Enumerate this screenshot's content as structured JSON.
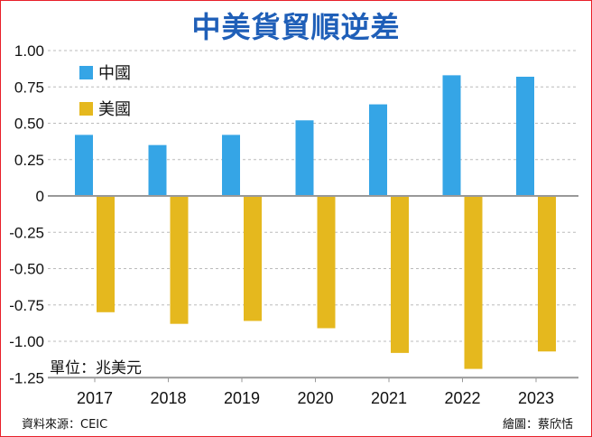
{
  "chart_data": {
    "type": "bar",
    "title": "中美貨貿順逆差",
    "categories": [
      "2017",
      "2018",
      "2019",
      "2020",
      "2021",
      "2022",
      "2023"
    ],
    "series": [
      {
        "name": "中國",
        "color": "#35a5e6",
        "values": [
          0.42,
          0.35,
          0.42,
          0.52,
          0.63,
          0.83,
          0.82
        ]
      },
      {
        "name": "美國",
        "color": "#e5b81e",
        "values": [
          -0.8,
          -0.88,
          -0.86,
          -0.91,
          -1.08,
          -1.19,
          -1.07
        ]
      }
    ],
    "ylim": [
      -1.25,
      1.0
    ],
    "yticks": [
      "1.00",
      "0.75",
      "0.50",
      "0.25",
      "0",
      "-0.25",
      "-0.50",
      "-0.75",
      "-1.00",
      "-1.25"
    ],
    "ytick_values": [
      1.0,
      0.75,
      0.5,
      0.25,
      0,
      -0.25,
      -0.5,
      -0.75,
      -1.0,
      -1.25
    ],
    "grid": true,
    "legend_position": "top-left",
    "unit": "單位：兆美元"
  },
  "footer": {
    "source": "資料來源：CEIC",
    "credit": "繪圖：蔡欣恬"
  }
}
